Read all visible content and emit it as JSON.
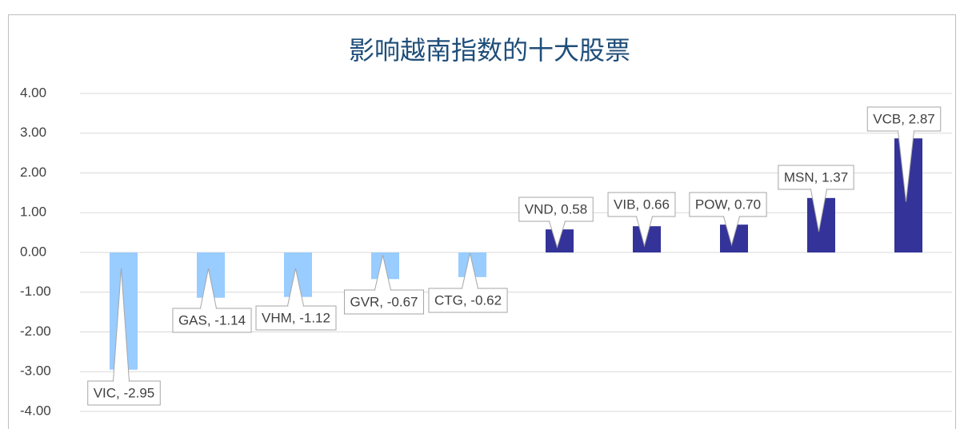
{
  "chart_data": {
    "type": "bar",
    "title": "影响越南指数的十大股票",
    "values": [
      -2.95,
      -1.14,
      -1.12,
      -0.67,
      -0.62,
      0.58,
      0.66,
      0.7,
      1.37,
      2.87
    ],
    "value_labels": [
      "VIC, -2.95",
      "GAS, -1.14",
      "VHM, -1.12",
      "GVR, -0.67",
      "CTG, -0.62",
      "VND, 0.58",
      "VIB, 0.66",
      "POW, 0.70",
      "MSN, 1.37",
      "VCB, 2.87"
    ],
    "colors": [
      "#99ccff",
      "#99ccff",
      "#99ccff",
      "#99ccff",
      "#99ccff",
      "#333399",
      "#333399",
      "#333399",
      "#333399",
      "#333399"
    ],
    "ylim": [
      -4,
      4
    ],
    "yticks": [
      {
        "value": -4,
        "label": "-4.00"
      },
      {
        "value": -3,
        "label": "-3.00"
      },
      {
        "value": -2,
        "label": "-2.00"
      },
      {
        "value": -1,
        "label": "-1.00"
      },
      {
        "value": 0,
        "label": "0.00"
      },
      {
        "value": 1,
        "label": "1.00"
      },
      {
        "value": 2,
        "label": "2.00"
      },
      {
        "value": 3,
        "label": "3.00"
      },
      {
        "value": 4,
        "label": "4.00"
      }
    ],
    "grid": true
  }
}
